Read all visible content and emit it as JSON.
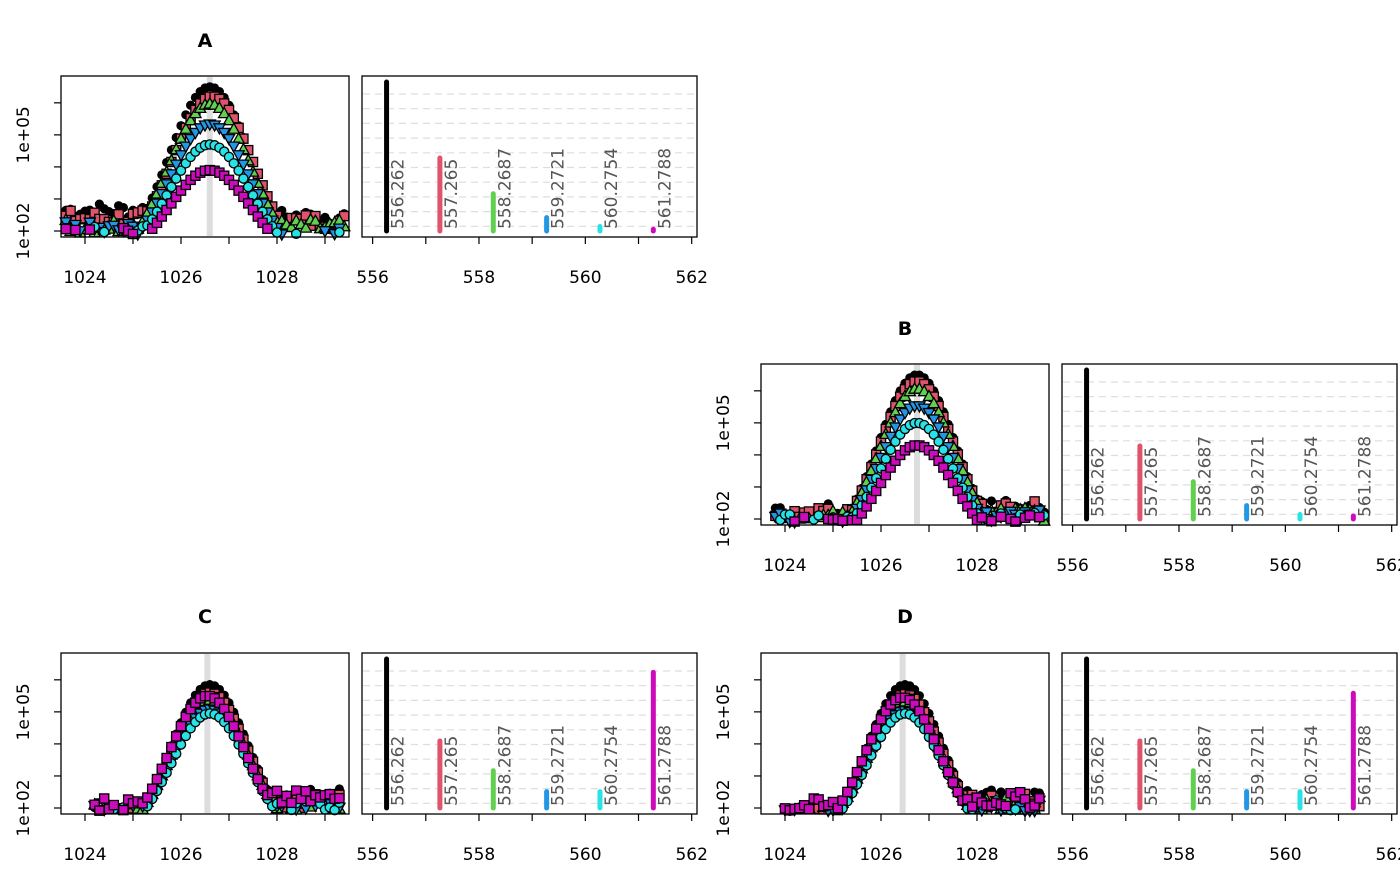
{
  "colors": [
    "#000000",
    "#DF536B",
    "#61D04F",
    "#2297E6",
    "#28E2E5",
    "#CD0BBC"
  ],
  "chart_data": [
    {
      "panel": "A",
      "title": "A",
      "chromatogram": {
        "type": "scatter",
        "xlim": [
          1023.5,
          1029.5
        ],
        "xticks": [
          1024,
          1025,
          1026,
          1027,
          1028,
          1029
        ],
        "xtick_labels": [
          "1024",
          "",
          "1026",
          "",
          "1028",
          ""
        ],
        "ylim": [
          1,
          6
        ],
        "yticks": [
          1,
          2,
          3,
          4,
          5
        ],
        "ytick_labels": [
          "1e+02",
          "",
          "",
          "1e+05",
          ""
        ],
        "rt_marker": 1026.6,
        "x_range": [
          1023.6,
          1029.4
        ],
        "series": [
          {
            "peak": 5.5,
            "baseline": 1.65,
            "tail": 1.45,
            "mu": 1026.6,
            "sigma": 0.85
          },
          {
            "peak": 5.2,
            "baseline": 1.4,
            "tail": 1.3,
            "mu": 1026.65,
            "sigma": 0.85
          },
          {
            "peak": 4.95,
            "baseline": 1.15,
            "tail": 1.1,
            "mu": 1026.6,
            "sigma": 0.85
          },
          {
            "peak": 4.35,
            "baseline": 1.05,
            "tail": 0.9,
            "mu": 1026.6,
            "sigma": 0.85
          },
          {
            "peak": 3.7,
            "baseline": 0.95,
            "tail": 0.75,
            "mu": 1026.6,
            "sigma": 0.85
          },
          {
            "peak": 2.9,
            "baseline": 0.85,
            "tail": 0.6,
            "mu": 1026.6,
            "sigma": 0.85
          }
        ]
      },
      "spectrum": {
        "type": "bar",
        "xlim": [
          555.8,
          562.1
        ],
        "xticks": [
          556,
          557,
          558,
          559,
          560,
          561,
          562
        ],
        "xtick_labels": [
          "556",
          "",
          "558",
          "",
          "560",
          "",
          "562"
        ],
        "ylim": [
          0,
          100
        ],
        "mz": [
          556.262,
          557.265,
          558.2687,
          559.2721,
          560.2754,
          561.2788
        ],
        "labels": [
          "556.262",
          "557.265",
          "558.2687",
          "559.2721",
          "560.2754",
          "561.2788"
        ],
        "intensity": [
          100,
          49,
          25,
          9,
          3,
          1.2
        ]
      }
    },
    {
      "panel": "B",
      "title": "B",
      "chromatogram": {
        "type": "scatter",
        "xlim": [
          1023.5,
          1029.5
        ],
        "xticks": [
          1024,
          1025,
          1026,
          1027,
          1028,
          1029
        ],
        "xtick_labels": [
          "1024",
          "",
          "1026",
          "",
          "1028",
          ""
        ],
        "ylim": [
          1,
          6
        ],
        "yticks": [
          1,
          2,
          3,
          4,
          5
        ],
        "ytick_labels": [
          "1e+02",
          "",
          "",
          "1e+05",
          ""
        ],
        "rt_marker": 1026.75,
        "x_range": [
          1023.8,
          1029.4
        ],
        "series": [
          {
            "peak": 5.5,
            "baseline": 1.25,
            "tail": 1.45,
            "mu": 1026.75,
            "sigma": 0.8
          },
          {
            "peak": 5.3,
            "baseline": 1.1,
            "tail": 1.3,
            "mu": 1026.75,
            "sigma": 0.8
          },
          {
            "peak": 5.05,
            "baseline": 1.0,
            "tail": 1.15,
            "mu": 1026.75,
            "sigma": 0.8
          },
          {
            "peak": 4.55,
            "baseline": 0.95,
            "tail": 1.05,
            "mu": 1026.75,
            "sigma": 0.8
          },
          {
            "peak": 4.0,
            "baseline": 0.9,
            "tail": 0.95,
            "mu": 1026.75,
            "sigma": 0.8
          },
          {
            "peak": 3.3,
            "baseline": 0.85,
            "tail": 0.9,
            "mu": 1026.75,
            "sigma": 0.8
          }
        ]
      },
      "spectrum": {
        "type": "bar",
        "xlim": [
          555.8,
          562.1
        ],
        "xticks": [
          556,
          557,
          558,
          559,
          560,
          561,
          562
        ],
        "xtick_labels": [
          "556",
          "",
          "558",
          "",
          "560",
          "",
          "562"
        ],
        "ylim": [
          0,
          100
        ],
        "mz": [
          556.262,
          557.265,
          558.2687,
          559.2721,
          560.2754,
          561.2788
        ],
        "labels": [
          "556.262",
          "557.265",
          "558.2687",
          "559.2721",
          "560.2754",
          "561.2788"
        ],
        "intensity": [
          100,
          49,
          25,
          9,
          3,
          2
        ]
      }
    },
    {
      "panel": "C",
      "title": "C",
      "chromatogram": {
        "type": "scatter",
        "xlim": [
          1023.5,
          1029.5
        ],
        "xticks": [
          1024,
          1025,
          1026,
          1027,
          1028,
          1029
        ],
        "xtick_labels": [
          "1024",
          "",
          "1026",
          "",
          "1028",
          ""
        ],
        "ylim": [
          1,
          6
        ],
        "yticks": [
          1,
          2,
          3,
          4,
          5
        ],
        "ytick_labels": [
          "1e+02",
          "",
          "",
          "1e+05",
          ""
        ],
        "rt_marker": 1026.55,
        "x_range": [
          1024.2,
          1029.3
        ],
        "series": [
          {
            "peak": 4.85,
            "baseline": 0.95,
            "tail": 1.35,
            "mu": 1026.6,
            "sigma": 0.8
          },
          {
            "peak": 4.6,
            "baseline": 0.9,
            "tail": 1.2,
            "mu": 1026.6,
            "sigma": 0.8
          },
          {
            "peak": 4.35,
            "baseline": 0.9,
            "tail": 1.1,
            "mu": 1026.6,
            "sigma": 0.8
          },
          {
            "peak": 4.1,
            "baseline": 0.85,
            "tail": 1.05,
            "mu": 1026.6,
            "sigma": 0.8
          },
          {
            "peak": 3.95,
            "baseline": 0.8,
            "tail": 1.0,
            "mu": 1026.6,
            "sigma": 0.8
          },
          {
            "peak": 4.5,
            "baseline": 1.1,
            "tail": 1.3,
            "mu": 1026.55,
            "sigma": 0.8
          }
        ]
      },
      "spectrum": {
        "type": "bar",
        "xlim": [
          555.8,
          562.1
        ],
        "xticks": [
          556,
          557,
          558,
          559,
          560,
          561,
          562
        ],
        "xtick_labels": [
          "556",
          "",
          "558",
          "",
          "560",
          "",
          "562"
        ],
        "ylim": [
          0,
          100
        ],
        "mz": [
          556.262,
          557.265,
          558.2687,
          559.2721,
          560.2754,
          561.2788
        ],
        "labels": [
          "556.262",
          "557.265",
          "558.2687",
          "559.2721",
          "560.2754",
          "561.2788"
        ],
        "intensity": [
          100,
          45,
          25,
          11,
          11,
          91
        ]
      }
    },
    {
      "panel": "D",
      "title": "D",
      "chromatogram": {
        "type": "scatter",
        "xlim": [
          1023.5,
          1029.5
        ],
        "xticks": [
          1024,
          1025,
          1026,
          1027,
          1028,
          1029
        ],
        "xtick_labels": [
          "1024",
          "",
          "1026",
          "",
          "1028",
          ""
        ],
        "ylim": [
          1,
          6
        ],
        "yticks": [
          1,
          2,
          3,
          4,
          5
        ],
        "ytick_labels": [
          "1e+02",
          "",
          "",
          "1e+05",
          ""
        ],
        "rt_marker": 1026.45,
        "x_range": [
          1024.0,
          1029.3
        ],
        "series": [
          {
            "peak": 4.85,
            "baseline": 0.9,
            "tail": 1.35,
            "mu": 1026.5,
            "sigma": 0.78
          },
          {
            "peak": 4.55,
            "baseline": 0.9,
            "tail": 1.2,
            "mu": 1026.5,
            "sigma": 0.78
          },
          {
            "peak": 4.3,
            "baseline": 0.9,
            "tail": 1.1,
            "mu": 1026.5,
            "sigma": 0.78
          },
          {
            "peak": 4.05,
            "baseline": 0.85,
            "tail": 1.05,
            "mu": 1026.5,
            "sigma": 0.78
          },
          {
            "peak": 3.95,
            "baseline": 0.8,
            "tail": 1.0,
            "mu": 1026.5,
            "sigma": 0.78
          },
          {
            "peak": 4.45,
            "baseline": 1.05,
            "tail": 1.25,
            "mu": 1026.45,
            "sigma": 0.78
          }
        ]
      },
      "spectrum": {
        "type": "bar",
        "xlim": [
          555.8,
          562.1
        ],
        "xticks": [
          556,
          557,
          558,
          559,
          560,
          561,
          562
        ],
        "xtick_labels": [
          "556",
          "",
          "558",
          "",
          "560",
          "",
          "562"
        ],
        "ylim": [
          0,
          100
        ],
        "mz": [
          556.262,
          557.265,
          558.2687,
          559.2721,
          560.2754,
          561.2788
        ],
        "labels": [
          "556.262",
          "557.265",
          "558.2687",
          "559.2721",
          "560.2754",
          "561.2788"
        ],
        "intensity": [
          100,
          45,
          25,
          11,
          11,
          77
        ]
      }
    }
  ]
}
